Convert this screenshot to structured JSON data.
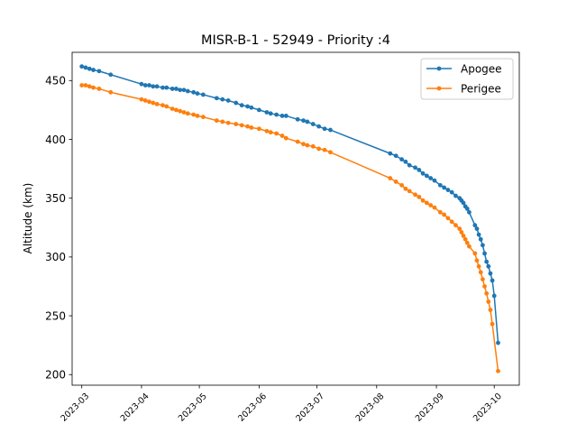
{
  "chart_data": {
    "type": "line",
    "title": "MISR-B-1 - 52949 - Priority :4",
    "xlabel": "",
    "ylabel": "Altitude (km)",
    "xlim": [
      "2023-02-24",
      "2023-10-14"
    ],
    "ylim": [
      191,
      474
    ],
    "x_ticks": [
      "2023-03",
      "2023-04",
      "2023-05",
      "2023-06",
      "2023-07",
      "2023-08",
      "2023-09",
      "2023-10"
    ],
    "y_ticks": [
      200,
      250,
      300,
      350,
      400,
      450
    ],
    "grid": false,
    "legend": "top-right",
    "series": [
      {
        "name": "Apogee",
        "color": "#1f77b4",
        "points": [
          [
            "2023-03-01",
            462
          ],
          [
            "2023-03-03",
            461
          ],
          [
            "2023-03-05",
            460
          ],
          [
            "2023-03-07",
            459
          ],
          [
            "2023-03-10",
            458
          ],
          [
            "2023-03-16",
            455
          ],
          [
            "2023-04-01",
            447
          ],
          [
            "2023-04-03",
            446
          ],
          [
            "2023-04-05",
            446
          ],
          [
            "2023-04-07",
            445
          ],
          [
            "2023-04-09",
            445
          ],
          [
            "2023-04-12",
            444
          ],
          [
            "2023-04-14",
            444
          ],
          [
            "2023-04-17",
            443
          ],
          [
            "2023-04-19",
            443
          ],
          [
            "2023-04-21",
            442
          ],
          [
            "2023-04-23",
            442
          ],
          [
            "2023-04-25",
            441
          ],
          [
            "2023-04-28",
            440
          ],
          [
            "2023-04-30",
            439
          ],
          [
            "2023-05-03",
            438
          ],
          [
            "2023-05-10",
            435
          ],
          [
            "2023-05-13",
            434
          ],
          [
            "2023-05-16",
            433
          ],
          [
            "2023-05-20",
            431
          ],
          [
            "2023-05-23",
            429
          ],
          [
            "2023-05-26",
            428
          ],
          [
            "2023-05-28",
            427
          ],
          [
            "2023-06-01",
            425
          ],
          [
            "2023-06-05",
            423
          ],
          [
            "2023-06-07",
            422
          ],
          [
            "2023-06-10",
            421
          ],
          [
            "2023-06-13",
            420
          ],
          [
            "2023-06-15",
            420
          ],
          [
            "2023-06-21",
            417
          ],
          [
            "2023-06-24",
            416
          ],
          [
            "2023-06-26",
            415
          ],
          [
            "2023-06-29",
            413
          ],
          [
            "2023-07-02",
            411
          ],
          [
            "2023-07-05",
            409
          ],
          [
            "2023-07-08",
            408
          ],
          [
            "2023-08-08",
            388
          ],
          [
            "2023-08-11",
            386
          ],
          [
            "2023-08-14",
            383
          ],
          [
            "2023-08-16",
            381
          ],
          [
            "2023-08-18",
            378
          ],
          [
            "2023-08-21",
            376
          ],
          [
            "2023-08-23",
            374
          ],
          [
            "2023-08-25",
            371
          ],
          [
            "2023-08-27",
            369
          ],
          [
            "2023-08-29",
            367
          ],
          [
            "2023-08-31",
            365
          ],
          [
            "2023-09-03",
            361
          ],
          [
            "2023-09-05",
            359
          ],
          [
            "2023-09-07",
            357
          ],
          [
            "2023-09-09",
            355
          ],
          [
            "2023-09-11",
            352
          ],
          [
            "2023-09-13",
            350
          ],
          [
            "2023-09-14",
            348
          ],
          [
            "2023-09-15",
            346
          ],
          [
            "2023-09-16",
            343
          ],
          [
            "2023-09-17",
            341
          ],
          [
            "2023-09-18",
            338
          ],
          [
            "2023-09-21",
            327
          ],
          [
            "2023-09-22",
            324
          ],
          [
            "2023-09-23",
            319
          ],
          [
            "2023-09-24",
            315
          ],
          [
            "2023-09-25",
            310
          ],
          [
            "2023-09-26",
            303
          ],
          [
            "2023-09-27",
            296
          ],
          [
            "2023-09-28",
            292
          ],
          [
            "2023-09-29",
            286
          ],
          [
            "2023-09-30",
            280
          ],
          [
            "2023-10-01",
            267
          ],
          [
            "2023-10-03",
            227
          ]
        ]
      },
      {
        "name": "Perigee",
        "color": "#ff7f0e",
        "points": [
          [
            "2023-03-01",
            446
          ],
          [
            "2023-03-03",
            446
          ],
          [
            "2023-03-05",
            445
          ],
          [
            "2023-03-07",
            444
          ],
          [
            "2023-03-10",
            443
          ],
          [
            "2023-03-16",
            440
          ],
          [
            "2023-04-01",
            434
          ],
          [
            "2023-04-03",
            433
          ],
          [
            "2023-04-05",
            432
          ],
          [
            "2023-04-07",
            431
          ],
          [
            "2023-04-09",
            430
          ],
          [
            "2023-04-12",
            429
          ],
          [
            "2023-04-14",
            428
          ],
          [
            "2023-04-17",
            426
          ],
          [
            "2023-04-19",
            425
          ],
          [
            "2023-04-21",
            424
          ],
          [
            "2023-04-23",
            423
          ],
          [
            "2023-04-25",
            422
          ],
          [
            "2023-04-28",
            421
          ],
          [
            "2023-04-30",
            420
          ],
          [
            "2023-05-03",
            419
          ],
          [
            "2023-05-10",
            416
          ],
          [
            "2023-05-13",
            415
          ],
          [
            "2023-05-16",
            414
          ],
          [
            "2023-05-20",
            413
          ],
          [
            "2023-05-23",
            412
          ],
          [
            "2023-05-26",
            411
          ],
          [
            "2023-05-28",
            410
          ],
          [
            "2023-06-01",
            409
          ],
          [
            "2023-06-05",
            407
          ],
          [
            "2023-06-07",
            406
          ],
          [
            "2023-06-10",
            405
          ],
          [
            "2023-06-13",
            403
          ],
          [
            "2023-06-15",
            401
          ],
          [
            "2023-06-21",
            398
          ],
          [
            "2023-06-24",
            396
          ],
          [
            "2023-06-26",
            395
          ],
          [
            "2023-06-29",
            394
          ],
          [
            "2023-07-02",
            392
          ],
          [
            "2023-07-05",
            391
          ],
          [
            "2023-07-08",
            389
          ],
          [
            "2023-08-08",
            367
          ],
          [
            "2023-08-11",
            364
          ],
          [
            "2023-08-14",
            361
          ],
          [
            "2023-08-16",
            358
          ],
          [
            "2023-08-18",
            356
          ],
          [
            "2023-08-21",
            353
          ],
          [
            "2023-08-23",
            351
          ],
          [
            "2023-08-25",
            348
          ],
          [
            "2023-08-27",
            346
          ],
          [
            "2023-08-29",
            344
          ],
          [
            "2023-08-31",
            342
          ],
          [
            "2023-09-03",
            338
          ],
          [
            "2023-09-05",
            336
          ],
          [
            "2023-09-07",
            333
          ],
          [
            "2023-09-09",
            330
          ],
          [
            "2023-09-11",
            327
          ],
          [
            "2023-09-13",
            324
          ],
          [
            "2023-09-14",
            321
          ],
          [
            "2023-09-15",
            318
          ],
          [
            "2023-09-16",
            315
          ],
          [
            "2023-09-17",
            312
          ],
          [
            "2023-09-18",
            309
          ],
          [
            "2023-09-21",
            303
          ],
          [
            "2023-09-22",
            297
          ],
          [
            "2023-09-23",
            292
          ],
          [
            "2023-09-24",
            287
          ],
          [
            "2023-09-25",
            281
          ],
          [
            "2023-09-26",
            275
          ],
          [
            "2023-09-27",
            269
          ],
          [
            "2023-09-28",
            262
          ],
          [
            "2023-09-29",
            255
          ],
          [
            "2023-09-30",
            243
          ],
          [
            "2023-10-03",
            203
          ]
        ]
      }
    ]
  }
}
